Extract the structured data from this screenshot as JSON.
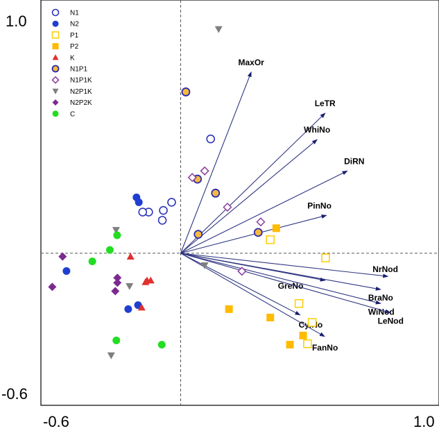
{
  "chart_data": {
    "type": "scatter",
    "subtype": "pca-biplot",
    "title": "",
    "xlabel": "",
    "ylabel": "",
    "xlim": [
      -0.6,
      1.0
    ],
    "ylim": [
      -0.6,
      1.0
    ],
    "tick_labels": {
      "x_left": "-0.6",
      "x_right": "1.0",
      "y_top": "1.0",
      "y_bottom": "-0.6"
    },
    "crosshair": {
      "x": 0,
      "y": 0
    },
    "grid": false,
    "legend_position": "top-left",
    "vectors": [
      {
        "label": "MaxOr",
        "x": 0.273,
        "y": 0.775
      },
      {
        "label": "LeTR",
        "x": 0.559,
        "y": 0.599
      },
      {
        "label": "WhiNo",
        "x": 0.528,
        "y": 0.486
      },
      {
        "label": "DiRN",
        "x": 0.645,
        "y": 0.352
      },
      {
        "label": "PinNo",
        "x": 0.564,
        "y": 0.162
      },
      {
        "label": "NrNod",
        "x": 0.802,
        "y": -0.099
      },
      {
        "label": "GreNo",
        "x": 0.559,
        "y": -0.116
      },
      {
        "label": "BraNo",
        "x": 0.774,
        "y": -0.155
      },
      {
        "label": "WiNod",
        "x": 0.774,
        "y": -0.215
      },
      {
        "label": "LeNod",
        "x": 0.811,
        "y": -0.254
      },
      {
        "label": "CylNo",
        "x": 0.462,
        "y": -0.264
      },
      {
        "label": "FanNo",
        "x": 0.557,
        "y": -0.356
      }
    ],
    "series": [
      {
        "name": "N1",
        "marker": "circle-open",
        "color": "#2b35b8",
        "points": [
          [
            0.116,
            0.489
          ],
          [
            -0.035,
            0.218
          ],
          [
            -0.124,
            0.176
          ],
          [
            -0.067,
            0.183
          ],
          [
            -0.147,
            0.176
          ],
          [
            -0.071,
            0.141
          ]
        ]
      },
      {
        "name": "N2",
        "marker": "circle-filled",
        "color": "#1f3fd0",
        "points": [
          [
            -0.171,
            0.239
          ],
          [
            -0.162,
            0.218
          ],
          [
            -0.442,
            -0.076
          ],
          [
            -0.165,
            -0.222
          ],
          [
            -0.203,
            -0.239
          ]
        ]
      },
      {
        "name": "P1",
        "marker": "square-open",
        "color": "#ffcc00",
        "points": [
          [
            0.347,
            0.058
          ],
          [
            0.561,
            -0.02
          ],
          [
            0.458,
            -0.215
          ],
          [
            0.509,
            -0.296
          ],
          [
            0.491,
            -0.387
          ]
        ]
      },
      {
        "name": "P2",
        "marker": "square-filled",
        "color": "#ffbb00",
        "points": [
          [
            0.37,
            0.107
          ],
          [
            0.187,
            -0.239
          ],
          [
            0.347,
            -0.275
          ],
          [
            0.474,
            -0.352
          ],
          [
            0.423,
            -0.391
          ]
        ]
      },
      {
        "name": "K",
        "marker": "triangle-up",
        "color": "#e03030",
        "points": [
          [
            -0.194,
            -0.014
          ],
          [
            -0.116,
            -0.116
          ],
          [
            -0.13,
            -0.116
          ],
          [
            -0.136,
            -0.123
          ],
          [
            -0.151,
            -0.232
          ]
        ]
      },
      {
        "name": "N1P1",
        "marker": "circle-orange-outlined",
        "color": "#f5b940",
        "points": [
          [
            0.02,
            0.69
          ],
          [
            0.135,
            0.257
          ],
          [
            0.065,
            0.317
          ],
          [
            0.3,
            0.089
          ],
          [
            0.068,
            0.081
          ]
        ]
      },
      {
        "name": "N1P1K",
        "marker": "diamond-open",
        "color": "#8b3a9c",
        "points": [
          [
            0.093,
            0.352
          ],
          [
            0.045,
            0.324
          ],
          [
            0.181,
            0.197
          ],
          [
            0.31,
            0.134
          ],
          [
            0.237,
            -0.077
          ]
        ]
      },
      {
        "name": "N2P1K",
        "marker": "triangle-down",
        "color": "#7f7f7f",
        "points": [
          [
            0.147,
            0.958
          ],
          [
            -0.25,
            0.099
          ],
          [
            -0.198,
            -0.141
          ],
          [
            -0.269,
            -0.437
          ],
          [
            0.093,
            -0.052
          ]
        ]
      },
      {
        "name": "N2P2K",
        "marker": "diamond-filled",
        "color": "#7b2a8f",
        "points": [
          [
            -0.457,
            -0.014
          ],
          [
            -0.497,
            -0.144
          ],
          [
            -0.245,
            -0.105
          ],
          [
            -0.245,
            -0.126
          ],
          [
            -0.253,
            -0.162
          ]
        ]
      },
      {
        "name": "C",
        "marker": "circle-filled",
        "color": "#22dd22",
        "points": [
          [
            -0.246,
            0.077
          ],
          [
            -0.274,
            0.014
          ],
          [
            -0.342,
            -0.035
          ],
          [
            -0.249,
            -0.373
          ],
          [
            -0.073,
            -0.391
          ]
        ]
      }
    ]
  }
}
